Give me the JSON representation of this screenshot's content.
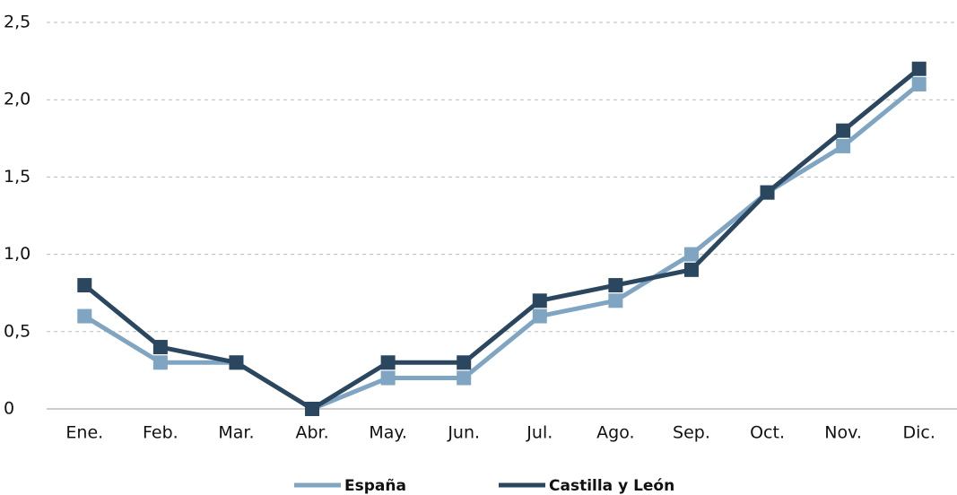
{
  "chart_data": {
    "type": "line",
    "categories": [
      "Ene.",
      "Feb.",
      "Mar.",
      "Abr.",
      "May.",
      "Jun.",
      "Jul.",
      "Ago.",
      "Sep.",
      "Oct.",
      "Nov.",
      "Dic."
    ],
    "series": [
      {
        "name": "España",
        "color": "#7fa5c2",
        "values": [
          0.6,
          0.3,
          0.3,
          0,
          0.2,
          0.2,
          0.6,
          0.7,
          1.0,
          1.4,
          1.7,
          2.1
        ]
      },
      {
        "name": "Castilla y León",
        "color": "#2b4760",
        "values": [
          0.8,
          0.4,
          0.3,
          0,
          0.3,
          0.3,
          0.7,
          0.8,
          0.9,
          1.4,
          1.8,
          2.2
        ]
      }
    ],
    "ylim": [
      0,
      2.5
    ],
    "yticks": [
      0,
      {
        "value": 0.5,
        "label": "0,5"
      },
      {
        "value": 1.0,
        "label": "1,0"
      },
      {
        "value": 1.5,
        "label": "1,5"
      },
      {
        "value": 2.0,
        "label": "2,0"
      },
      {
        "value": 2.5,
        "label": "2,5"
      }
    ],
    "grid": true,
    "legend": "bottom"
  }
}
